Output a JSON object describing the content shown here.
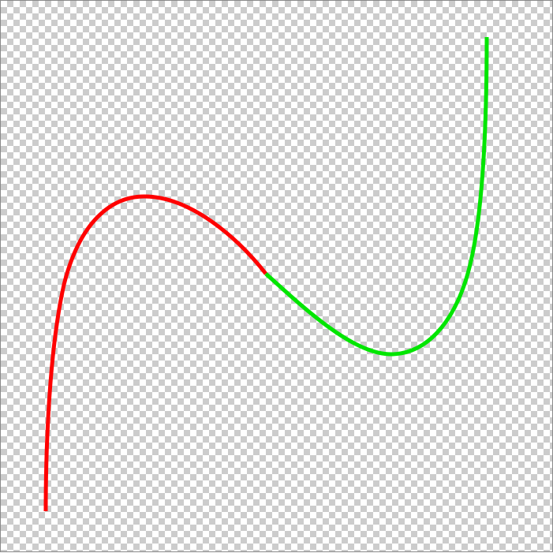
{
  "diagram": {
    "background": "transparency-checkerboard",
    "checker_colors": [
      "#ffffff",
      "#cccccc"
    ],
    "segments": [
      {
        "name": "red-curve-segment",
        "color": "#ff0000"
      },
      {
        "name": "green-curve-segment",
        "color": "#00e600"
      }
    ]
  }
}
